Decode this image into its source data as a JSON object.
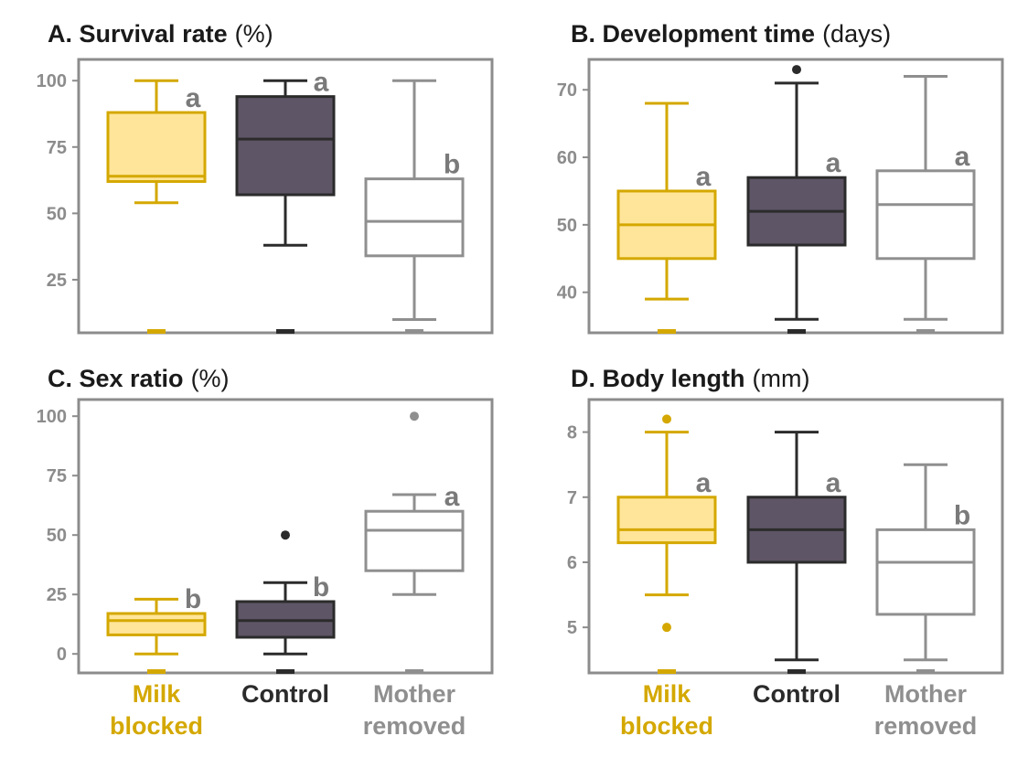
{
  "colors": {
    "milk_fill": "#ffe599",
    "milk_stroke": "#d4a800",
    "control_fill": "#5e5566",
    "control_stroke": "#2b2b2b",
    "mother_fill": "#ffffff",
    "mother_stroke": "#8f8f8f",
    "frame": "#8c8c8c",
    "tick_text": "#8c8c8c",
    "letter_text": "#7a7a7a"
  },
  "x_labels": [
    {
      "line1": "Milk",
      "line2": "blocked",
      "color": "#d4a800"
    },
    {
      "line1": "Control",
      "line2": "",
      "color": "#2b2b2b"
    },
    {
      "line1": "Mother",
      "line2": "removed",
      "color": "#8f8f8f"
    }
  ],
  "chart_data": [
    {
      "id": "A",
      "type": "box",
      "title_bold": "A. Survival rate",
      "title_unit": "(%)",
      "ylim": [
        5,
        108
      ],
      "yticks": [
        25,
        50,
        75,
        100
      ],
      "categories": [
        "Milk blocked",
        "Control",
        "Mother removed"
      ],
      "boxes": [
        {
          "whisker_low": 54,
          "q1": 62,
          "median": 64,
          "q3": 88,
          "whisker_high": 100,
          "outliers": [],
          "letter": "a"
        },
        {
          "whisker_low": 38,
          "q1": 57,
          "median": 78,
          "q3": 94,
          "whisker_high": 100,
          "outliers": [],
          "letter": "a"
        },
        {
          "whisker_low": 10,
          "q1": 34,
          "median": 47,
          "q3": 63,
          "whisker_high": 100,
          "outliers": [],
          "letter": "b"
        }
      ]
    },
    {
      "id": "B",
      "type": "box",
      "title_bold": "B. Development time",
      "title_unit": "(days)",
      "ylim": [
        34,
        74.5
      ],
      "yticks": [
        40,
        50,
        60,
        70
      ],
      "categories": [
        "Milk blocked",
        "Control",
        "Mother removed"
      ],
      "boxes": [
        {
          "whisker_low": 39,
          "q1": 45,
          "median": 50,
          "q3": 55,
          "whisker_high": 68,
          "outliers": [],
          "letter": "a"
        },
        {
          "whisker_low": 36,
          "q1": 47,
          "median": 52,
          "q3": 57,
          "whisker_high": 71,
          "outliers": [
            73
          ],
          "letter": "a"
        },
        {
          "whisker_low": 36,
          "q1": 45,
          "median": 53,
          "q3": 58,
          "whisker_high": 72,
          "outliers": [],
          "letter": "a"
        }
      ]
    },
    {
      "id": "C",
      "type": "box",
      "title_bold": "C. Sex ratio",
      "title_unit": "(%)",
      "ylim": [
        -8,
        107
      ],
      "yticks": [
        0,
        25,
        50,
        75,
        100
      ],
      "categories": [
        "Milk blocked",
        "Control",
        "Mother removed"
      ],
      "boxes": [
        {
          "whisker_low": 0,
          "q1": 8,
          "median": 14,
          "q3": 17,
          "whisker_high": 23,
          "outliers": [],
          "letter": "b"
        },
        {
          "whisker_low": 0,
          "q1": 7,
          "median": 14,
          "q3": 22,
          "whisker_high": 30,
          "outliers": [
            50
          ],
          "letter": "b"
        },
        {
          "whisker_low": 25,
          "q1": 35,
          "median": 52,
          "q3": 60,
          "whisker_high": 67,
          "outliers": [
            100
          ],
          "letter": "a"
        }
      ]
    },
    {
      "id": "D",
      "type": "box",
      "title_bold": "D. Body length",
      "title_unit": "(mm)",
      "ylim": [
        4.3,
        8.5
      ],
      "yticks": [
        5,
        6,
        7,
        8
      ],
      "categories": [
        "Milk blocked",
        "Control",
        "Mother removed"
      ],
      "boxes": [
        {
          "whisker_low": 5.5,
          "q1": 6.3,
          "median": 6.5,
          "q3": 7.0,
          "whisker_high": 8.0,
          "outliers": [
            5.0,
            8.2
          ],
          "letter": "a"
        },
        {
          "whisker_low": 4.5,
          "q1": 6.0,
          "median": 6.5,
          "q3": 7.0,
          "whisker_high": 8.0,
          "outliers": [],
          "letter": "a"
        },
        {
          "whisker_low": 4.5,
          "q1": 5.2,
          "median": 6.0,
          "q3": 6.5,
          "whisker_high": 7.5,
          "outliers": [],
          "letter": "b"
        }
      ]
    }
  ]
}
